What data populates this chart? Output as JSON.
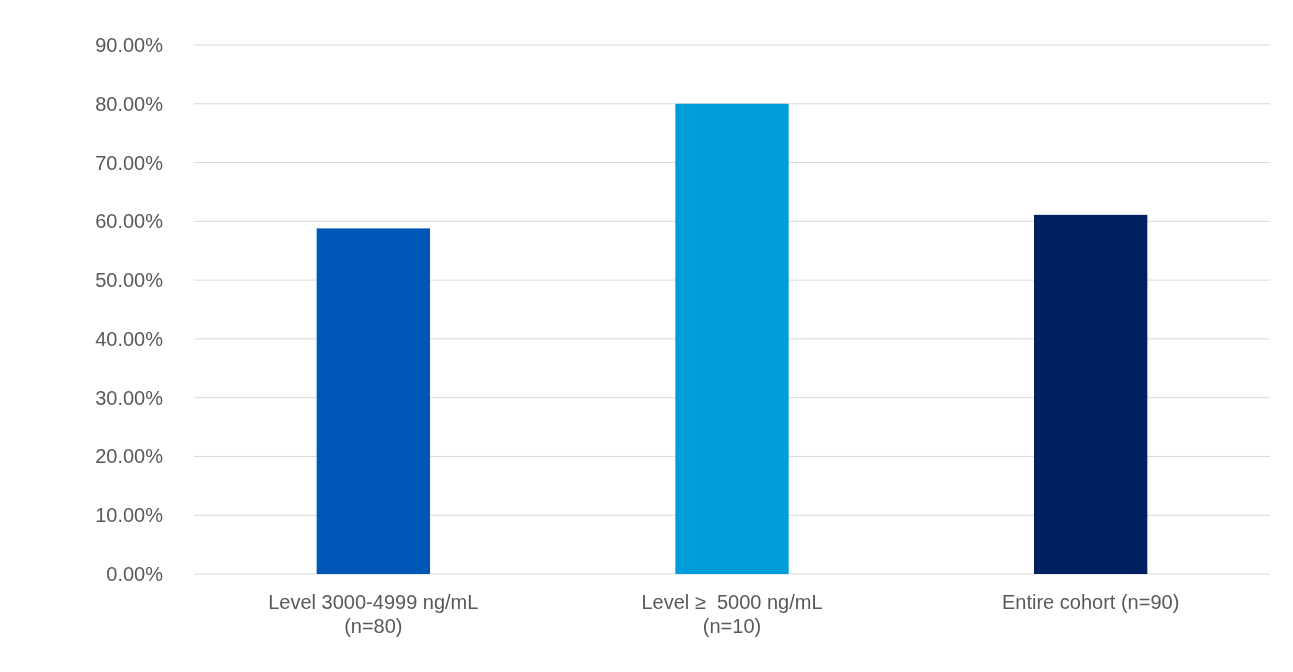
{
  "chart_data": {
    "type": "bar",
    "categories": [
      "Level 3000-4999 ng/mL (n=80)",
      "Level ≥  5000 ng/mL (n=10)",
      "Entire cohort (n=90)"
    ],
    "values": [
      58.8,
      80,
      61.1
    ],
    "colors": [
      "#0057b8",
      "#009ddc",
      "#002060"
    ],
    "ylim": [
      0,
      90
    ],
    "yticks": [
      {
        "value": 0,
        "label": "0.00%"
      },
      {
        "value": 10,
        "label": "10.00%"
      },
      {
        "value": 20,
        "label": "20.00%"
      },
      {
        "value": 30,
        "label": "30.00%"
      },
      {
        "value": 40,
        "label": "40.00%"
      },
      {
        "value": 50,
        "label": "50.00%"
      },
      {
        "value": 60,
        "label": "60.00%"
      },
      {
        "value": 70,
        "label": "70.00%"
      },
      {
        "value": 80,
        "label": "80.00%"
      },
      {
        "value": 90,
        "label": "90.00%"
      }
    ],
    "grid": "y"
  }
}
